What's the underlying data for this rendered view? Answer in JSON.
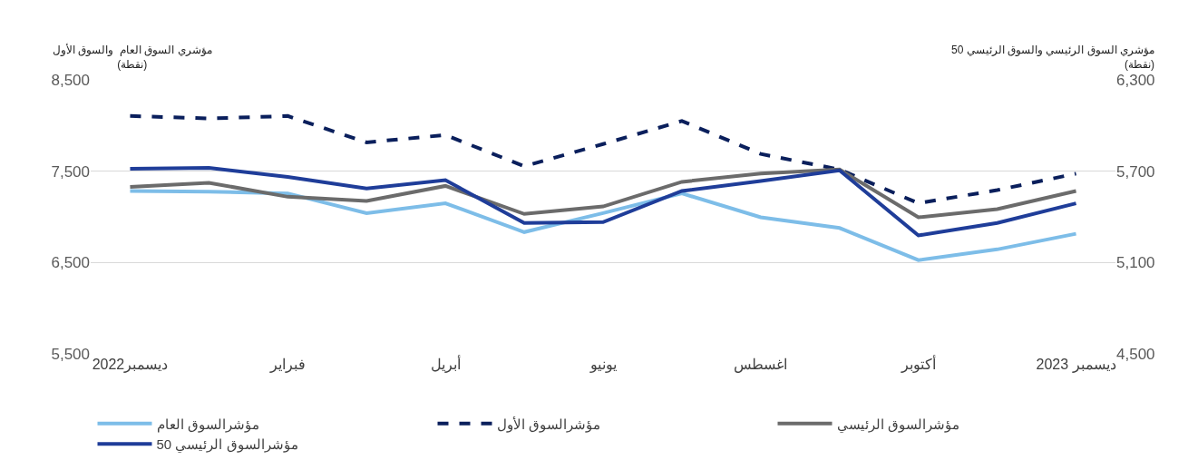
{
  "chart_data": {
    "type": "line",
    "ylabel": "مؤشري السوق العام  والسوق الأول\n(نقطة)",
    "y2label": "مؤشري السوق الرئيسي والسوق الرئيسي 50\n(نقطة)",
    "categories": [
      "ديسمبر2022",
      null,
      "فبراير",
      null,
      "أبريل",
      null,
      "يونيو",
      null,
      "اغسطس",
      null,
      "أكتوبر",
      null,
      "ديسمبر 2023"
    ],
    "series": [
      {
        "name": "مؤشرالسوق العام",
        "color": "#7dbde8",
        "line_style": "solid",
        "values": [
          7284,
          7275,
          7257,
          7041,
          7149,
          6833,
          7041,
          7257,
          6995,
          6878,
          6527,
          6644,
          6815
        ]
      },
      {
        "name": "مؤشرالسوق الأول",
        "color": "#0a1f5c",
        "line_style": "dashed",
        "values": [
          8104,
          8077,
          8104,
          7815,
          7896,
          7554,
          7797,
          8050,
          7689,
          7518,
          7149,
          7293,
          7473
        ]
      },
      {
        "name": "مؤشرالسوق الرئيسي",
        "color": "#6b6b6b",
        "line_style": "solid",
        "axis": "y2",
        "values": [
          5597,
          5624,
          5532,
          5505,
          5603,
          5419,
          5468,
          5630,
          5684,
          5711,
          5397,
          5451,
          5570
        ]
      },
      {
        "name": "مؤشرالسوق الرئيسي 50",
        "color": "#1f3d99",
        "line_style": "solid",
        "axis": "y2",
        "values": [
          5716,
          5722,
          5662,
          5587,
          5641,
          5360,
          5365,
          5570,
          5635,
          5705,
          5278,
          5360,
          5489
        ]
      }
    ],
    "ylim": [
      5500,
      8500
    ],
    "yticks": [
      {
        "value": 5500,
        "label": "5,500"
      },
      {
        "value": 6500,
        "label": "6,500"
      },
      {
        "value": 7500,
        "label": "7,500"
      },
      {
        "value": 8500,
        "label": "8,500"
      }
    ],
    "y2lim": [
      4500,
      6300
    ],
    "y2ticks": [
      {
        "value": 4500,
        "label": "4,500"
      },
      {
        "value": 5100,
        "label": "5,100"
      },
      {
        "value": 5700,
        "label": "5,700"
      },
      {
        "value": 6300,
        "label": "6,300"
      }
    ],
    "grid": "y",
    "legend": "bottom",
    "marker": "none"
  }
}
